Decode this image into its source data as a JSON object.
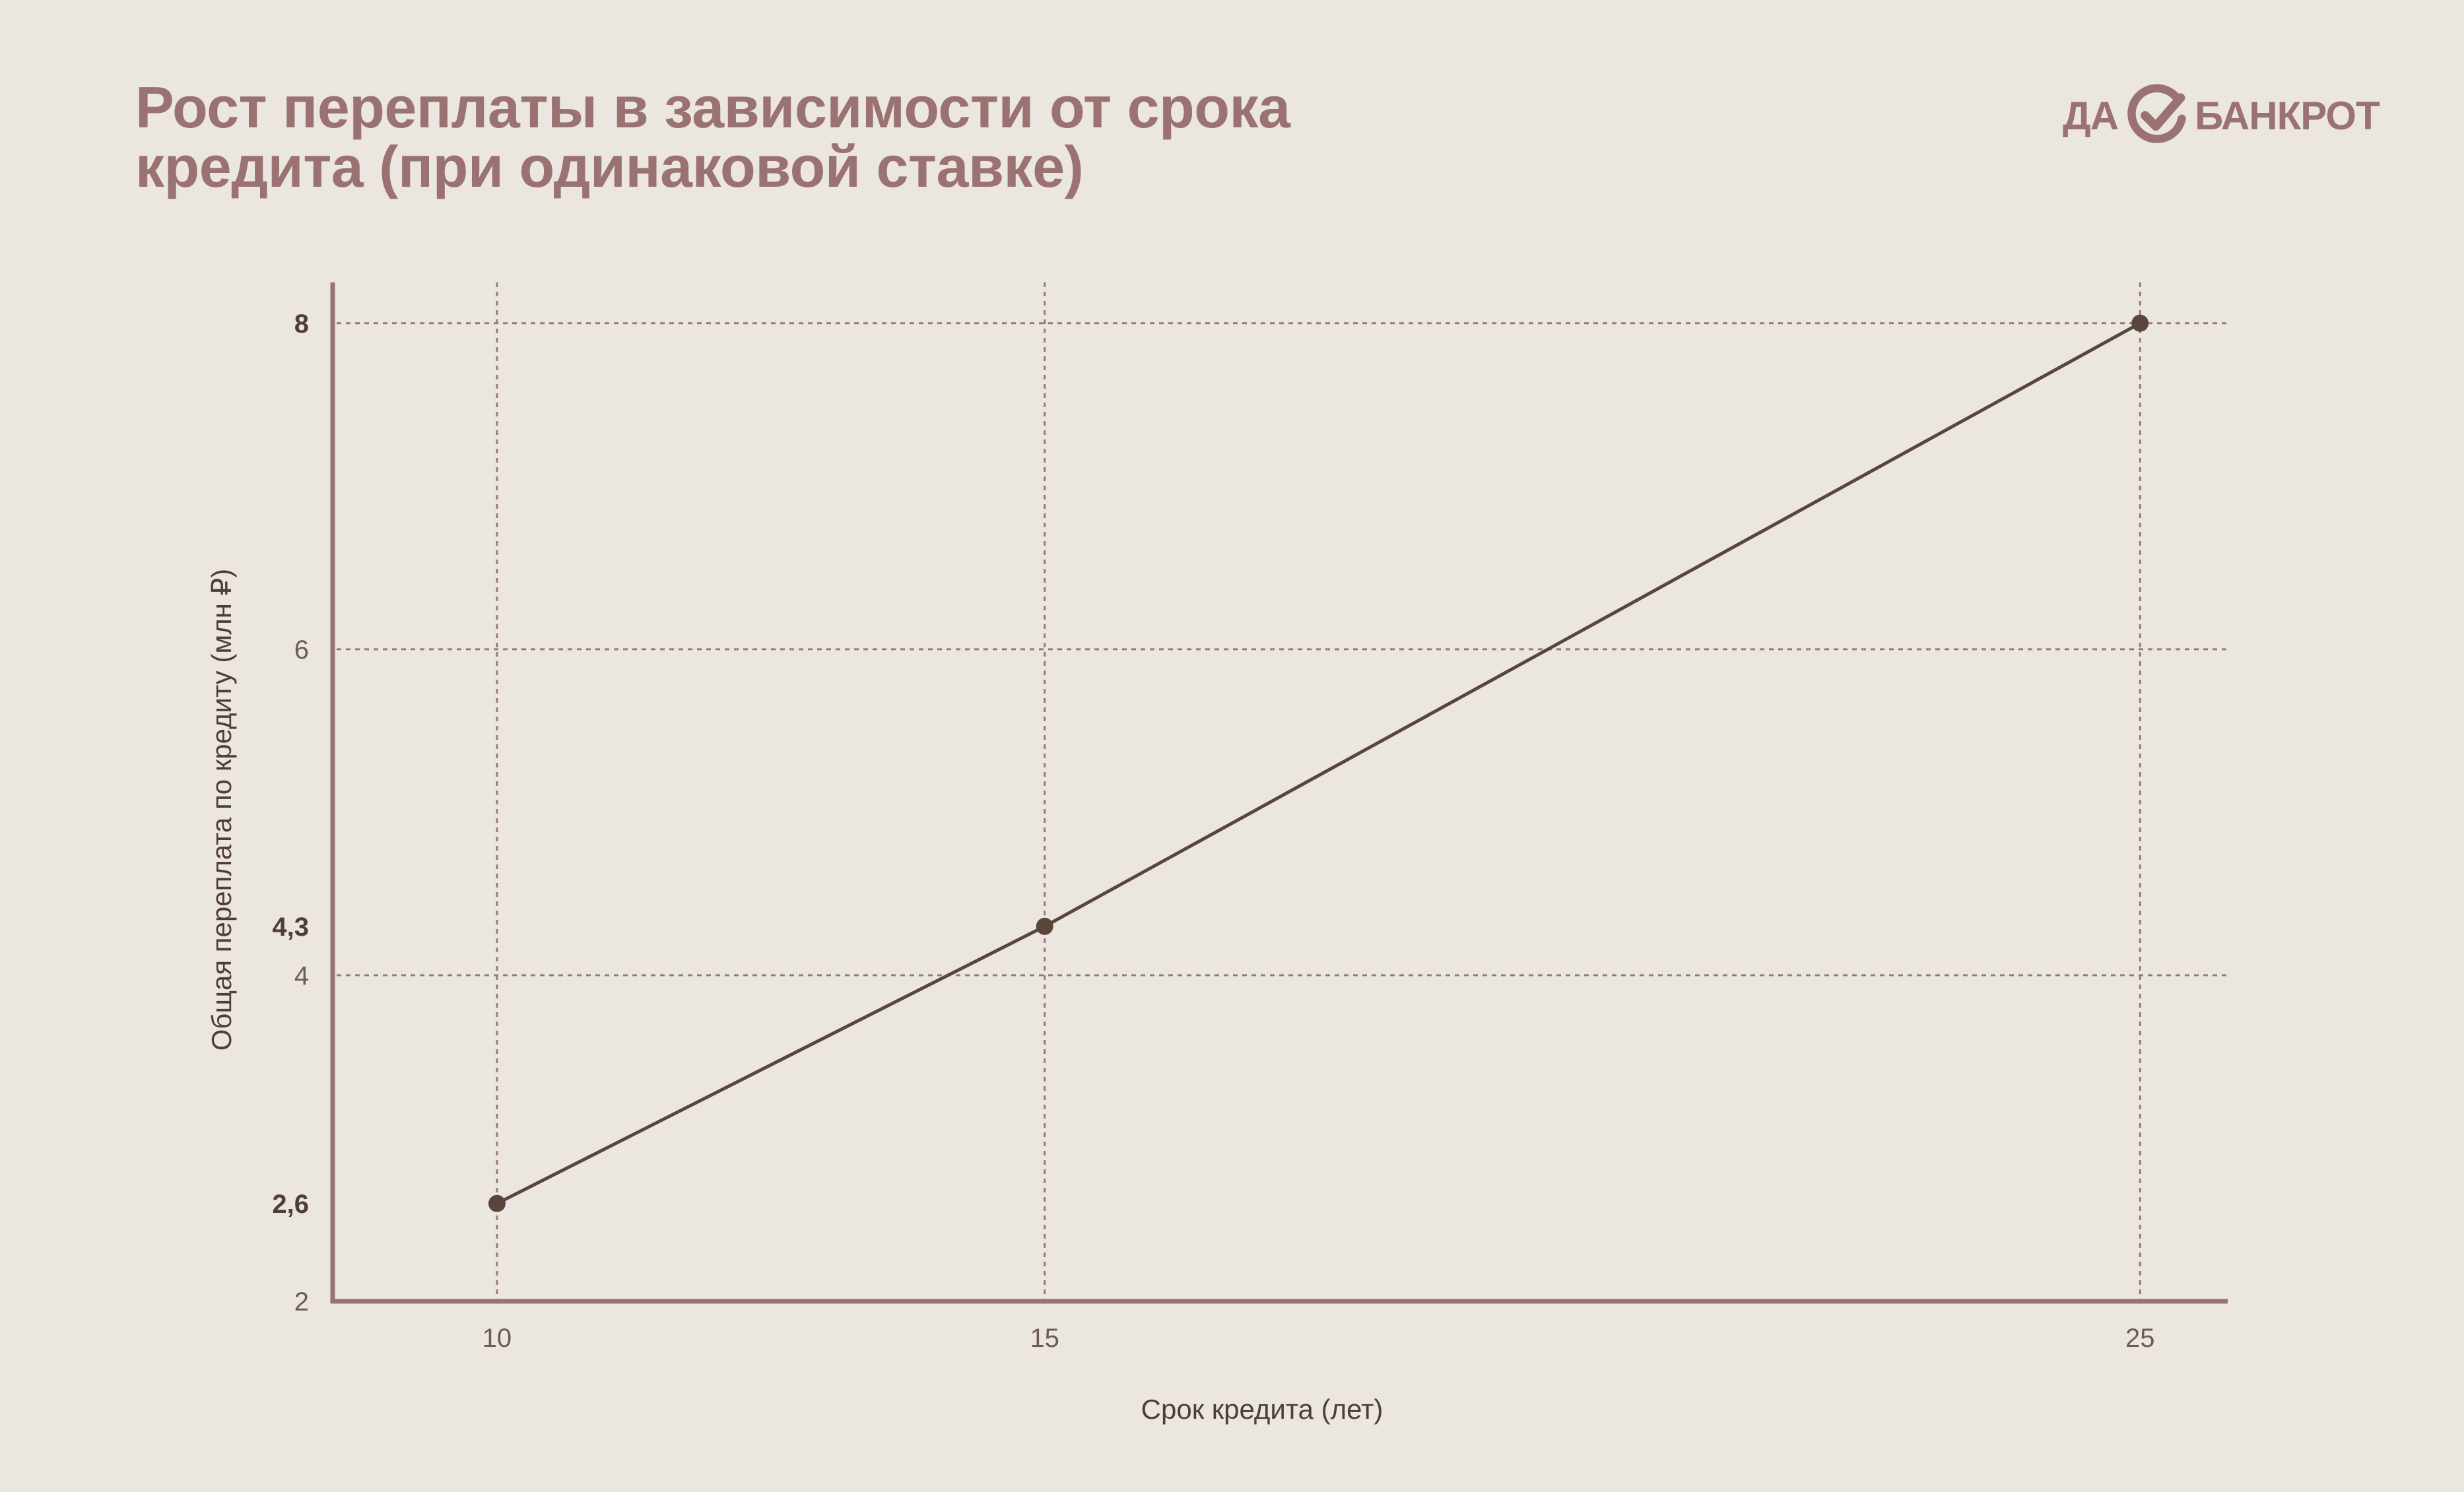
{
  "header": {
    "title_line1": "Рост переплаты в зависимости от срока",
    "title_line2": "кредита (при одинаковой ставке)"
  },
  "logo": {
    "left_text": "ДА",
    "right_text": "БАНКРОТ",
    "mark_icon": "check-circle-icon"
  },
  "colors": {
    "background": "#ebe6e0",
    "title": "#9a7271",
    "axis": "#9a7271",
    "line": "#5a453c",
    "grid": "#9a7a78",
    "label_dark": "#4f3d36"
  },
  "chart_data": {
    "type": "line",
    "xlabel": "Срок кредита (лет)",
    "ylabel": "Общая переплата по кредиту (млн ₽)",
    "xlim": [
      8.5,
      25.8
    ],
    "ylim": [
      2,
      8.25
    ],
    "x_ticks": [
      {
        "value": 10,
        "label": "10"
      },
      {
        "value": 15,
        "label": "15"
      },
      {
        "value": 25,
        "label": "25"
      }
    ],
    "y_ticks": [
      {
        "value": 2,
        "label": "2",
        "bold": false
      },
      {
        "value": 2.6,
        "label": "2,6",
        "bold": true
      },
      {
        "value": 4,
        "label": "4",
        "bold": false
      },
      {
        "value": 4.3,
        "label": "4,3",
        "bold": true
      },
      {
        "value": 6,
        "label": "6",
        "bold": false
      },
      {
        "value": 8,
        "label": "8",
        "bold": true
      }
    ],
    "grid_y": [
      4,
      6,
      8
    ],
    "grid_x": [
      10,
      15,
      25
    ],
    "series": [
      {
        "x": [
          10,
          15,
          25
        ],
        "y": [
          2.6,
          4.3,
          8
        ]
      }
    ],
    "grid": true
  }
}
